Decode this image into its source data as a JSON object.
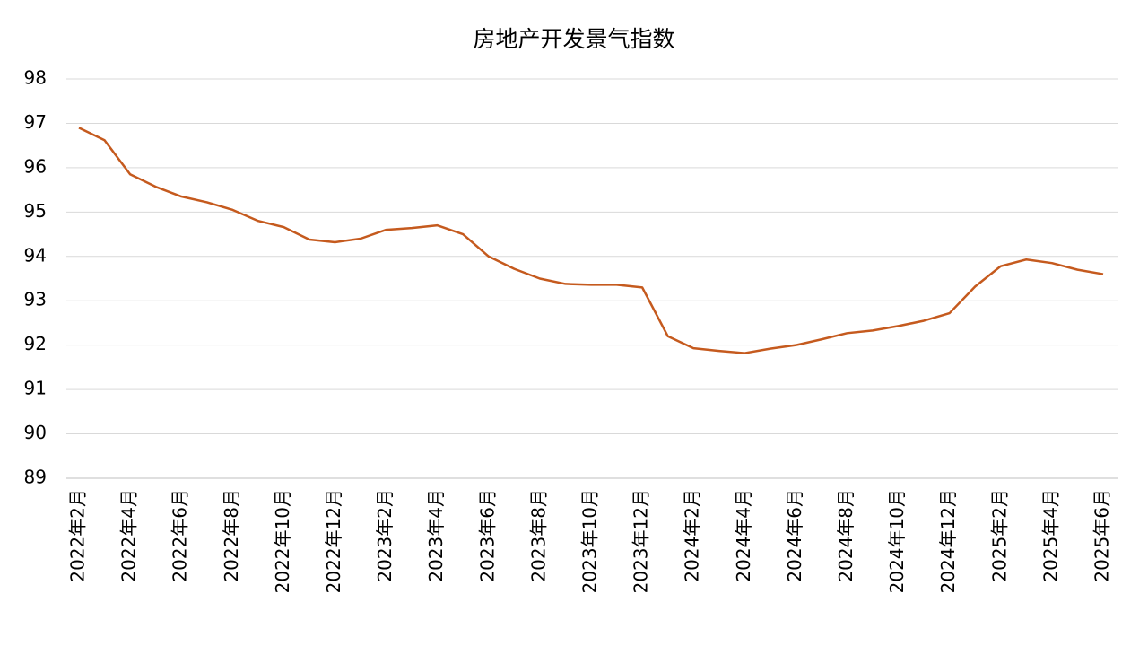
{
  "chart_data": {
    "type": "line",
    "title": "房地产开发景气指数",
    "categories": [
      "2022年2月",
      null,
      "2022年4月",
      null,
      "2022年6月",
      null,
      "2022年8月",
      null,
      "2022年10月",
      null,
      "2022年12月",
      null,
      "2023年2月",
      null,
      "2023年4月",
      null,
      "2023年6月",
      null,
      "2023年8月",
      null,
      "2023年10月",
      null,
      "2023年12月",
      null,
      "2024年2月",
      null,
      "2024年4月",
      null,
      "2024年6月",
      null,
      "2024年8月",
      null,
      "2024年10月",
      null,
      "2024年12月",
      null,
      "2025年2月",
      null,
      "2025年4月",
      null,
      "2025年6月"
    ],
    "series": [
      {
        "color": "#c55a1e",
        "values": [
          96.9,
          96.62,
          95.85,
          95.57,
          95.35,
          95.22,
          95.05,
          94.8,
          94.66,
          94.38,
          94.32,
          94.4,
          94.6,
          94.64,
          94.7,
          94.5,
          94.0,
          93.72,
          93.5,
          93.38,
          93.36,
          93.36,
          93.3,
          92.2,
          91.93,
          91.87,
          91.82,
          91.92,
          92.0,
          92.13,
          92.27,
          92.33,
          92.43,
          92.55,
          92.72,
          93.32,
          93.78,
          93.93,
          93.85,
          93.7,
          93.6
        ]
      }
    ],
    "ylim": [
      89,
      98
    ],
    "yticks": [
      89,
      90,
      91,
      92,
      93,
      94,
      95,
      96,
      97,
      98
    ],
    "grid": true
  }
}
